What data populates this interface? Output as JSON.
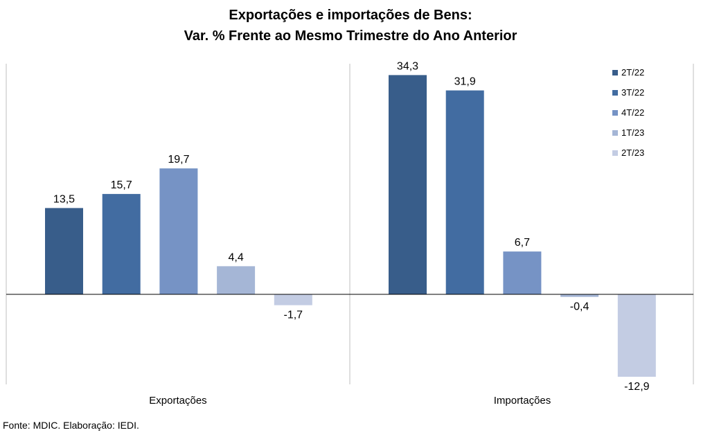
{
  "chart_data": {
    "type": "bar",
    "title": "Exportações e importações de Bens:",
    "subtitle": "Var. % Frente ao Mesmo Trimestre do Ano Anterior",
    "categories": [
      "Exportações",
      "Importações"
    ],
    "series": [
      {
        "name": "2T/22",
        "values": [
          13.5,
          34.3
        ],
        "labels": [
          "13,5",
          "34,3"
        ],
        "color": "#385d8a"
      },
      {
        "name": "3T/22",
        "values": [
          15.7,
          31.9
        ],
        "labels": [
          "15,7",
          "31,9"
        ],
        "color": "#426ca1"
      },
      {
        "name": "4T/22",
        "values": [
          19.7,
          6.7
        ],
        "labels": [
          "19,7",
          "6,7"
        ],
        "color": "#7693c5"
      },
      {
        "name": "1T/23",
        "values": [
          4.4,
          -0.4
        ],
        "labels": [
          "4,4",
          "-0,4"
        ],
        "color": "#a5b6d6"
      },
      {
        "name": "2T/23",
        "values": [
          -1.7,
          -12.9
        ],
        "labels": [
          "-1,7",
          "-12,9"
        ],
        "color": "#c3cce3"
      }
    ],
    "legend_position": "top-right",
    "grid": false
  },
  "footer": {
    "source": "Fonte: MDIC. Elaboração: IEDI."
  }
}
